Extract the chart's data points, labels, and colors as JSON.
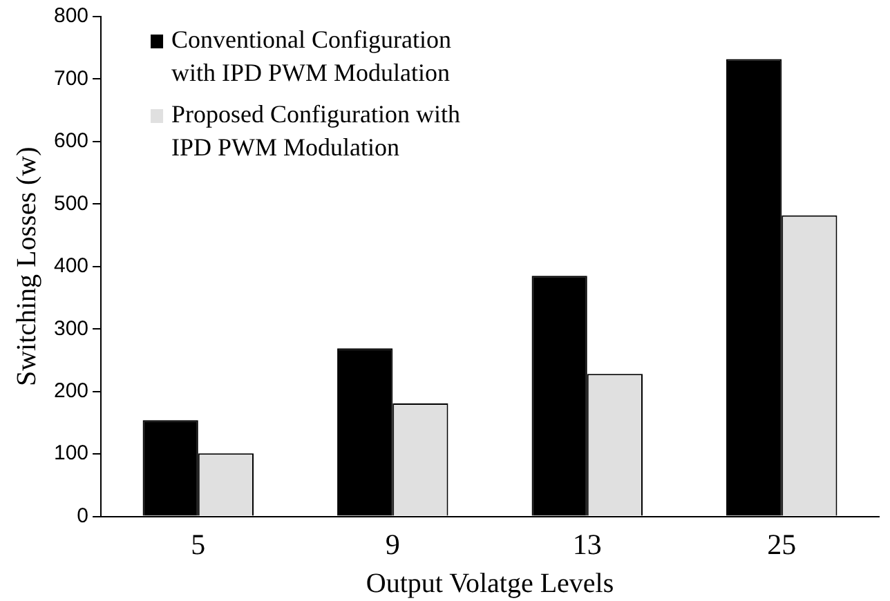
{
  "chart_data": {
    "type": "bar",
    "xlabel": "Output Volatge Levels",
    "ylabel": "Switching Losses (w)",
    "categories": [
      "5",
      "9",
      "13",
      "25"
    ],
    "series": [
      {
        "name": "Conventional Configuration with IPD PWM Modulation",
        "color": "#000000",
        "values": [
          154,
          269,
          385,
          732
        ]
      },
      {
        "name": "Proposed Configuration with IPD PWM Modulation",
        "color": "#e0e0e0",
        "values": [
          101,
          181,
          228,
          482
        ]
      }
    ],
    "ylim": [
      0,
      800
    ],
    "yticks": [
      0,
      100,
      200,
      300,
      400,
      500,
      600,
      700,
      800
    ],
    "grid": false,
    "legend": "top left"
  }
}
